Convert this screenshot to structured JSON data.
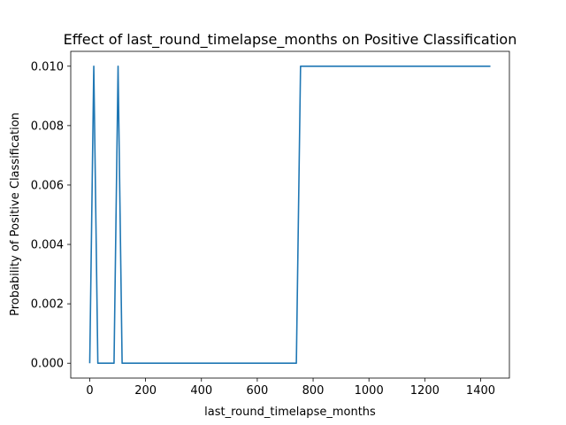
{
  "chart_data": {
    "type": "line",
    "title": "Effect of last_round_timelapse_months on Positive Classification",
    "xlabel": "last_round_timelapse_months",
    "ylabel": "Probability of Positive Classification",
    "xlim": [
      -68,
      1503
    ],
    "ylim": [
      -0.0005,
      0.0105
    ],
    "xticks": [
      0,
      200,
      400,
      600,
      800,
      1000,
      1200,
      1400
    ],
    "xtick_labels": [
      "0",
      "200",
      "400",
      "600",
      "800",
      "1000",
      "1200",
      "1400"
    ],
    "yticks": [
      0.0,
      0.002,
      0.004,
      0.006,
      0.008,
      0.01
    ],
    "ytick_labels": [
      "0.000",
      "0.002",
      "0.004",
      "0.006",
      "0.008",
      "0.010"
    ],
    "grid": false,
    "series": [
      {
        "color": "#1f77b4",
        "x": [
          0,
          14.5,
          29,
          87,
          101.5,
          116,
          740,
          755,
          1435
        ],
        "y": [
          0.0,
          0.01,
          0.0,
          0.0,
          0.01,
          0.0,
          0.0,
          0.01,
          0.01
        ]
      }
    ]
  }
}
